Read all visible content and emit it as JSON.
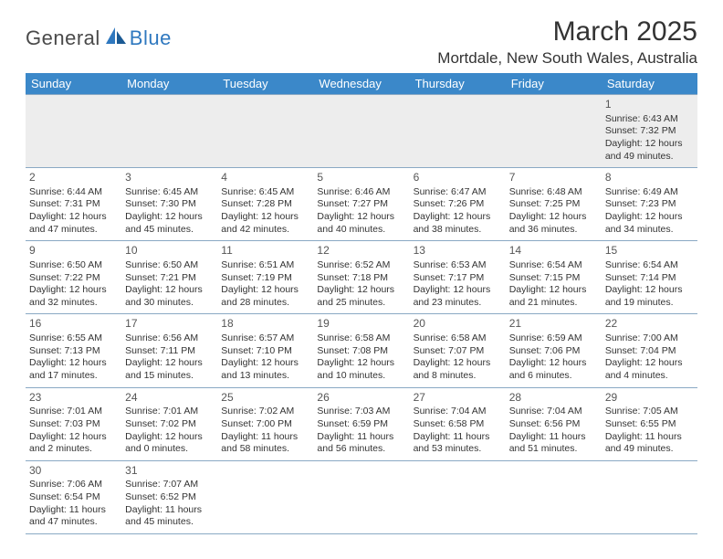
{
  "brand": {
    "part1": "General",
    "part2": "Blue"
  },
  "title": "March 2025",
  "location": "Mortdale, New South Wales, Australia",
  "colors": {
    "header_bg": "#3b88c9",
    "header_text": "#ffffff",
    "row_shade": "#e9e9e9",
    "border": "#8aa9c4",
    "brand_blue": "#2f78bf"
  },
  "days": [
    "Sunday",
    "Monday",
    "Tuesday",
    "Wednesday",
    "Thursday",
    "Friday",
    "Saturday"
  ],
  "weeks": [
    [
      null,
      null,
      null,
      null,
      null,
      null,
      {
        "n": "1",
        "sr": "Sunrise: 6:43 AM",
        "ss": "Sunset: 7:32 PM",
        "d1": "Daylight: 12 hours",
        "d2": "and 49 minutes."
      }
    ],
    [
      {
        "n": "2",
        "sr": "Sunrise: 6:44 AM",
        "ss": "Sunset: 7:31 PM",
        "d1": "Daylight: 12 hours",
        "d2": "and 47 minutes."
      },
      {
        "n": "3",
        "sr": "Sunrise: 6:45 AM",
        "ss": "Sunset: 7:30 PM",
        "d1": "Daylight: 12 hours",
        "d2": "and 45 minutes."
      },
      {
        "n": "4",
        "sr": "Sunrise: 6:45 AM",
        "ss": "Sunset: 7:28 PM",
        "d1": "Daylight: 12 hours",
        "d2": "and 42 minutes."
      },
      {
        "n": "5",
        "sr": "Sunrise: 6:46 AM",
        "ss": "Sunset: 7:27 PM",
        "d1": "Daylight: 12 hours",
        "d2": "and 40 minutes."
      },
      {
        "n": "6",
        "sr": "Sunrise: 6:47 AM",
        "ss": "Sunset: 7:26 PM",
        "d1": "Daylight: 12 hours",
        "d2": "and 38 minutes."
      },
      {
        "n": "7",
        "sr": "Sunrise: 6:48 AM",
        "ss": "Sunset: 7:25 PM",
        "d1": "Daylight: 12 hours",
        "d2": "and 36 minutes."
      },
      {
        "n": "8",
        "sr": "Sunrise: 6:49 AM",
        "ss": "Sunset: 7:23 PM",
        "d1": "Daylight: 12 hours",
        "d2": "and 34 minutes."
      }
    ],
    [
      {
        "n": "9",
        "sr": "Sunrise: 6:50 AM",
        "ss": "Sunset: 7:22 PM",
        "d1": "Daylight: 12 hours",
        "d2": "and 32 minutes."
      },
      {
        "n": "10",
        "sr": "Sunrise: 6:50 AM",
        "ss": "Sunset: 7:21 PM",
        "d1": "Daylight: 12 hours",
        "d2": "and 30 minutes."
      },
      {
        "n": "11",
        "sr": "Sunrise: 6:51 AM",
        "ss": "Sunset: 7:19 PM",
        "d1": "Daylight: 12 hours",
        "d2": "and 28 minutes."
      },
      {
        "n": "12",
        "sr": "Sunrise: 6:52 AM",
        "ss": "Sunset: 7:18 PM",
        "d1": "Daylight: 12 hours",
        "d2": "and 25 minutes."
      },
      {
        "n": "13",
        "sr": "Sunrise: 6:53 AM",
        "ss": "Sunset: 7:17 PM",
        "d1": "Daylight: 12 hours",
        "d2": "and 23 minutes."
      },
      {
        "n": "14",
        "sr": "Sunrise: 6:54 AM",
        "ss": "Sunset: 7:15 PM",
        "d1": "Daylight: 12 hours",
        "d2": "and 21 minutes."
      },
      {
        "n": "15",
        "sr": "Sunrise: 6:54 AM",
        "ss": "Sunset: 7:14 PM",
        "d1": "Daylight: 12 hours",
        "d2": "and 19 minutes."
      }
    ],
    [
      {
        "n": "16",
        "sr": "Sunrise: 6:55 AM",
        "ss": "Sunset: 7:13 PM",
        "d1": "Daylight: 12 hours",
        "d2": "and 17 minutes."
      },
      {
        "n": "17",
        "sr": "Sunrise: 6:56 AM",
        "ss": "Sunset: 7:11 PM",
        "d1": "Daylight: 12 hours",
        "d2": "and 15 minutes."
      },
      {
        "n": "18",
        "sr": "Sunrise: 6:57 AM",
        "ss": "Sunset: 7:10 PM",
        "d1": "Daylight: 12 hours",
        "d2": "and 13 minutes."
      },
      {
        "n": "19",
        "sr": "Sunrise: 6:58 AM",
        "ss": "Sunset: 7:08 PM",
        "d1": "Daylight: 12 hours",
        "d2": "and 10 minutes."
      },
      {
        "n": "20",
        "sr": "Sunrise: 6:58 AM",
        "ss": "Sunset: 7:07 PM",
        "d1": "Daylight: 12 hours",
        "d2": "and 8 minutes."
      },
      {
        "n": "21",
        "sr": "Sunrise: 6:59 AM",
        "ss": "Sunset: 7:06 PM",
        "d1": "Daylight: 12 hours",
        "d2": "and 6 minutes."
      },
      {
        "n": "22",
        "sr": "Sunrise: 7:00 AM",
        "ss": "Sunset: 7:04 PM",
        "d1": "Daylight: 12 hours",
        "d2": "and 4 minutes."
      }
    ],
    [
      {
        "n": "23",
        "sr": "Sunrise: 7:01 AM",
        "ss": "Sunset: 7:03 PM",
        "d1": "Daylight: 12 hours",
        "d2": "and 2 minutes."
      },
      {
        "n": "24",
        "sr": "Sunrise: 7:01 AM",
        "ss": "Sunset: 7:02 PM",
        "d1": "Daylight: 12 hours",
        "d2": "and 0 minutes."
      },
      {
        "n": "25",
        "sr": "Sunrise: 7:02 AM",
        "ss": "Sunset: 7:00 PM",
        "d1": "Daylight: 11 hours",
        "d2": "and 58 minutes."
      },
      {
        "n": "26",
        "sr": "Sunrise: 7:03 AM",
        "ss": "Sunset: 6:59 PM",
        "d1": "Daylight: 11 hours",
        "d2": "and 56 minutes."
      },
      {
        "n": "27",
        "sr": "Sunrise: 7:04 AM",
        "ss": "Sunset: 6:58 PM",
        "d1": "Daylight: 11 hours",
        "d2": "and 53 minutes."
      },
      {
        "n": "28",
        "sr": "Sunrise: 7:04 AM",
        "ss": "Sunset: 6:56 PM",
        "d1": "Daylight: 11 hours",
        "d2": "and 51 minutes."
      },
      {
        "n": "29",
        "sr": "Sunrise: 7:05 AM",
        "ss": "Sunset: 6:55 PM",
        "d1": "Daylight: 11 hours",
        "d2": "and 49 minutes."
      }
    ],
    [
      {
        "n": "30",
        "sr": "Sunrise: 7:06 AM",
        "ss": "Sunset: 6:54 PM",
        "d1": "Daylight: 11 hours",
        "d2": "and 47 minutes."
      },
      {
        "n": "31",
        "sr": "Sunrise: 7:07 AM",
        "ss": "Sunset: 6:52 PM",
        "d1": "Daylight: 11 hours",
        "d2": "and 45 minutes."
      },
      null,
      null,
      null,
      null,
      null
    ]
  ]
}
